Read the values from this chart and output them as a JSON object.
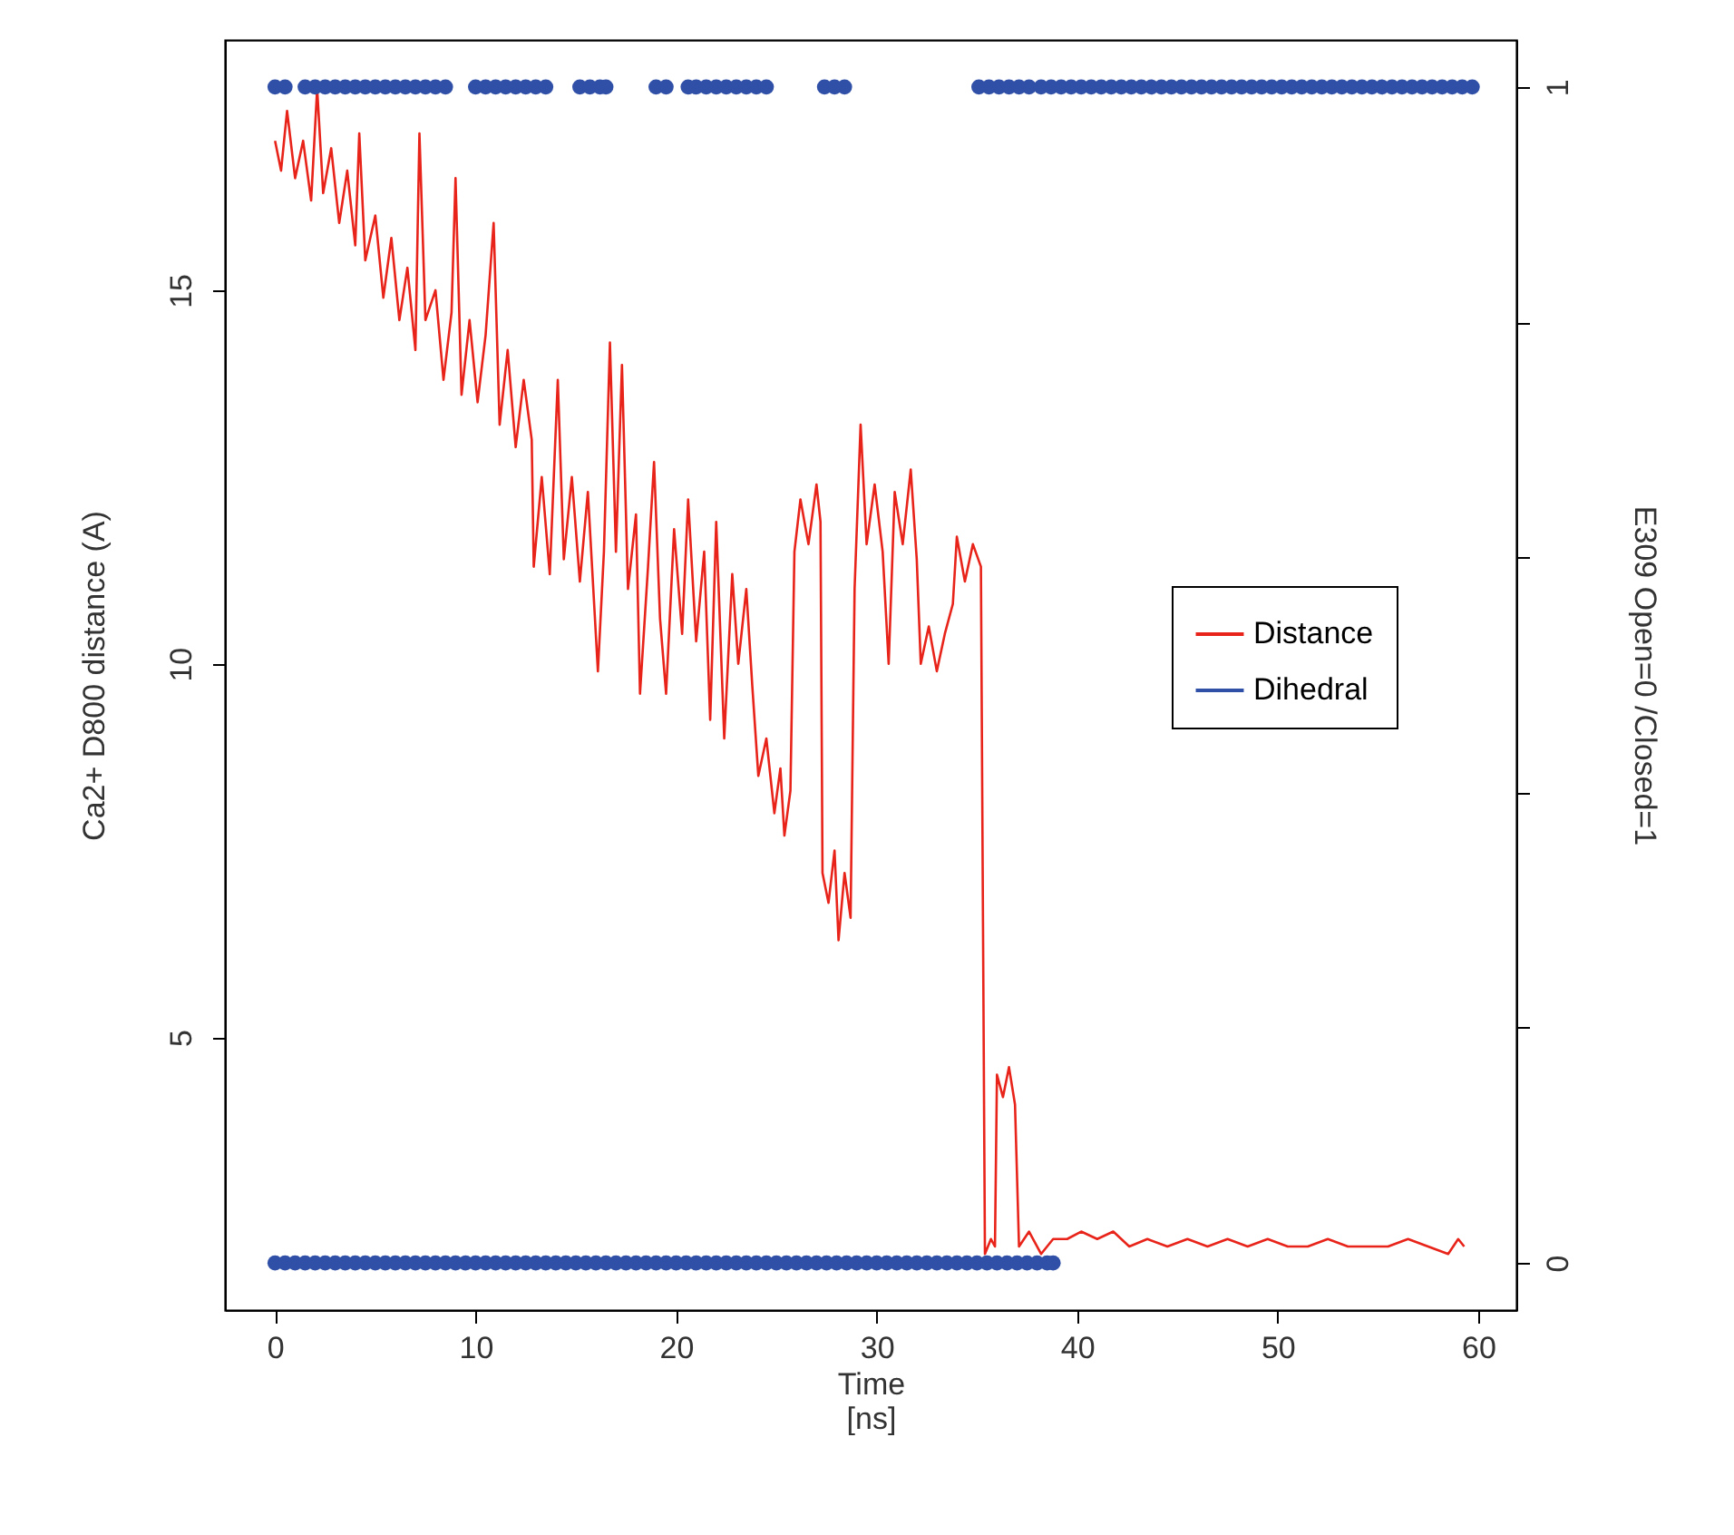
{
  "chart_data": {
    "type": "line",
    "xlabel": "Time\n[ns]",
    "ylabel": "Ca2+ D800 distance (A)",
    "y2label": "E309 Open=0 /Closed=1",
    "xlim": [
      -2.5,
      61.9
    ],
    "xticks": [
      0,
      10,
      20,
      30,
      40,
      50,
      60
    ],
    "ylim": [
      1.35,
      18.35
    ],
    "yticks": [
      5,
      10,
      15
    ],
    "y2lim": [
      -0.04,
      1.04
    ],
    "y2ticks": [
      0,
      {
        "value": 0.2,
        "label": null
      },
      {
        "value": 0.4,
        "label": null
      },
      {
        "value": 0.6,
        "label": null
      },
      {
        "value": 0.8,
        "label": null
      },
      1
    ],
    "grid": false,
    "legend": "right",
    "series": [
      {
        "name": "Distance",
        "color": "#e8241a",
        "line_style": "solid",
        "x": [
          0,
          0.3,
          0.6,
          1.0,
          1.4,
          1.8,
          2.1,
          2.4,
          2.8,
          3.2,
          3.6,
          4.0,
          4.2,
          4.5,
          5.0,
          5.4,
          5.8,
          6.2,
          6.6,
          7.0,
          7.2,
          7.5,
          8.0,
          8.4,
          8.8,
          9.0,
          9.3,
          9.7,
          10.1,
          10.5,
          10.9,
          11.2,
          11.6,
          12.0,
          12.4,
          12.8,
          12.9,
          13.3,
          13.7,
          14.1,
          14.4,
          14.8,
          15.2,
          15.6,
          16.1,
          16.4,
          16.7,
          17.0,
          17.3,
          17.6,
          18.0,
          18.2,
          18.6,
          18.9,
          19.2,
          19.5,
          19.9,
          20.3,
          20.6,
          21.0,
          21.4,
          21.7,
          22.0,
          22.4,
          22.8,
          23.1,
          23.5,
          23.8,
          24.1,
          24.5,
          24.9,
          25.2,
          25.4,
          25.7,
          25.9,
          26.2,
          26.6,
          27.0,
          27.2,
          27.3,
          27.6,
          27.9,
          28.1,
          28.4,
          28.7,
          28.9,
          29.2,
          29.5,
          29.9,
          30.3,
          30.6,
          30.9,
          31.3,
          31.7,
          32.0,
          32.2,
          32.6,
          33.0,
          33.4,
          33.8,
          34.0,
          34.4,
          34.8,
          35.2,
          35.4,
          35.7,
          35.9,
          36.0,
          36.3,
          36.6,
          36.9,
          37.1,
          37.6,
          38.2,
          38.8,
          39.5,
          40.2,
          41.0,
          41.8,
          42.6,
          43.5,
          44.5,
          45.5,
          46.5,
          47.5,
          48.5,
          49.5,
          50.5,
          51.5,
          52.5,
          53.5,
          54.5,
          55.5,
          56.5,
          57.5,
          58.5,
          59.0,
          59.3
        ],
        "values": [
          17.0,
          16.6,
          17.4,
          16.5,
          17.0,
          16.2,
          17.7,
          16.3,
          16.9,
          15.9,
          16.6,
          15.6,
          17.1,
          15.4,
          16.0,
          14.9,
          15.7,
          14.6,
          15.3,
          14.2,
          17.1,
          14.6,
          15.0,
          13.8,
          14.7,
          16.5,
          13.6,
          14.6,
          13.5,
          14.4,
          15.9,
          13.2,
          14.2,
          12.9,
          13.8,
          13.0,
          11.3,
          12.5,
          11.2,
          13.8,
          11.4,
          12.5,
          11.1,
          12.3,
          9.9,
          11.5,
          14.3,
          11.5,
          14.0,
          11.0,
          12.0,
          9.6,
          11.3,
          12.7,
          10.6,
          9.6,
          11.8,
          10.4,
          12.2,
          10.3,
          11.5,
          9.25,
          11.9,
          9.0,
          11.2,
          10.0,
          11.0,
          9.7,
          8.5,
          9.0,
          8.0,
          8.6,
          7.7,
          8.3,
          11.5,
          12.2,
          11.6,
          12.4,
          11.9,
          7.2,
          6.8,
          7.5,
          6.3,
          7.2,
          6.6,
          11.0,
          13.2,
          11.6,
          12.4,
          11.5,
          10.0,
          12.3,
          11.6,
          12.6,
          11.4,
          10.0,
          10.5,
          9.9,
          10.4,
          10.8,
          11.7,
          11.1,
          11.6,
          11.3,
          2.1,
          2.3,
          2.2,
          4.5,
          4.2,
          4.6,
          4.1,
          2.2,
          2.4,
          2.1,
          2.3,
          2.3,
          2.4,
          2.3,
          2.4,
          2.2,
          2.3,
          2.2,
          2.3,
          2.2,
          2.3,
          2.2,
          2.3,
          2.2,
          2.2,
          2.3,
          2.2,
          2.2,
          2.2,
          2.3,
          2.2,
          2.1,
          2.3,
          2.2
        ]
      },
      {
        "name": "Dihedral",
        "type": "scatter",
        "axis": "y2",
        "color": "#3050a8",
        "marker": "circle",
        "x": [
          0,
          0.5,
          1.5,
          2,
          2.5,
          3,
          3.5,
          4,
          4.5,
          5,
          5.5,
          6,
          6.5,
          7,
          7.5,
          8,
          8.5,
          10,
          10.5,
          11,
          11.5,
          12,
          12.5,
          13,
          13.5,
          15.2,
          15.7,
          16.2,
          16.5,
          19,
          19.5,
          20.6,
          21,
          21.5,
          22,
          22.5,
          23,
          23.5,
          24,
          24.5,
          27.4,
          27.9,
          28.4,
          35.1,
          35.6,
          36.1,
          36.6,
          37.1,
          37.6,
          38.2,
          38.7,
          39.2,
          39.7,
          40.2,
          40.7,
          41.2,
          41.7,
          42.2,
          42.7,
          43.2,
          43.7,
          44.2,
          44.7,
          45.2,
          45.7,
          46.2,
          46.7,
          47.2,
          47.7,
          48.2,
          48.7,
          49.2,
          49.7,
          50.2,
          50.7,
          51.2,
          51.7,
          52.2,
          52.7,
          53.2,
          53.7,
          54.2,
          54.7,
          55.2,
          55.7,
          56.2,
          56.7,
          57.2,
          57.7,
          58.2,
          58.7,
          59.2,
          59.7,
          0,
          0.5,
          1,
          1.5,
          2,
          2.5,
          3,
          3.5,
          4,
          4.5,
          5,
          5.5,
          6,
          6.5,
          7,
          7.5,
          8,
          8.5,
          9,
          9.5,
          10,
          10.5,
          11,
          11.5,
          12,
          12.5,
          13,
          13.5,
          14,
          14.5,
          15,
          15.5,
          16,
          16.5,
          17,
          17.5,
          18,
          18.5,
          19,
          19.5,
          20,
          20.5,
          21,
          21.5,
          22,
          22.5,
          23,
          23.5,
          24,
          24.5,
          25,
          25.5,
          26,
          26.5,
          27,
          27.5,
          28,
          28.5,
          29,
          29.5,
          30,
          30.5,
          31,
          31.5,
          32,
          32.5,
          33,
          33.5,
          34,
          34.5,
          35,
          35.5,
          36,
          36.5,
          37,
          37.5,
          38,
          38.5,
          38.8
        ],
        "values": [
          1,
          1,
          1,
          1,
          1,
          1,
          1,
          1,
          1,
          1,
          1,
          1,
          1,
          1,
          1,
          1,
          1,
          1,
          1,
          1,
          1,
          1,
          1,
          1,
          1,
          1,
          1,
          1,
          1,
          1,
          1,
          1,
          1,
          1,
          1,
          1,
          1,
          1,
          1,
          1,
          1,
          1,
          1,
          1,
          1,
          1,
          1,
          1,
          1,
          1,
          1,
          1,
          1,
          1,
          1,
          1,
          1,
          1,
          1,
          1,
          1,
          1,
          1,
          1,
          1,
          1,
          1,
          1,
          1,
          1,
          1,
          1,
          1,
          1,
          1,
          1,
          1,
          1,
          1,
          1,
          1,
          1,
          1,
          1,
          1,
          1,
          1,
          1,
          1,
          1,
          1,
          1,
          1,
          0,
          0,
          0,
          0,
          0,
          0,
          0,
          0,
          0,
          0,
          0,
          0,
          0,
          0,
          0,
          0,
          0,
          0,
          0,
          0,
          0,
          0,
          0,
          0,
          0,
          0,
          0,
          0,
          0,
          0,
          0,
          0,
          0,
          0,
          0,
          0,
          0,
          0,
          0,
          0,
          0,
          0,
          0,
          0,
          0,
          0,
          0,
          0,
          0,
          0,
          0,
          0,
          0,
          0,
          0,
          0,
          0,
          0,
          0,
          0,
          0,
          0,
          0,
          0,
          0,
          0,
          0,
          0,
          0,
          0,
          0,
          0,
          0,
          0,
          0,
          0,
          0,
          0,
          0
        ]
      }
    ]
  }
}
